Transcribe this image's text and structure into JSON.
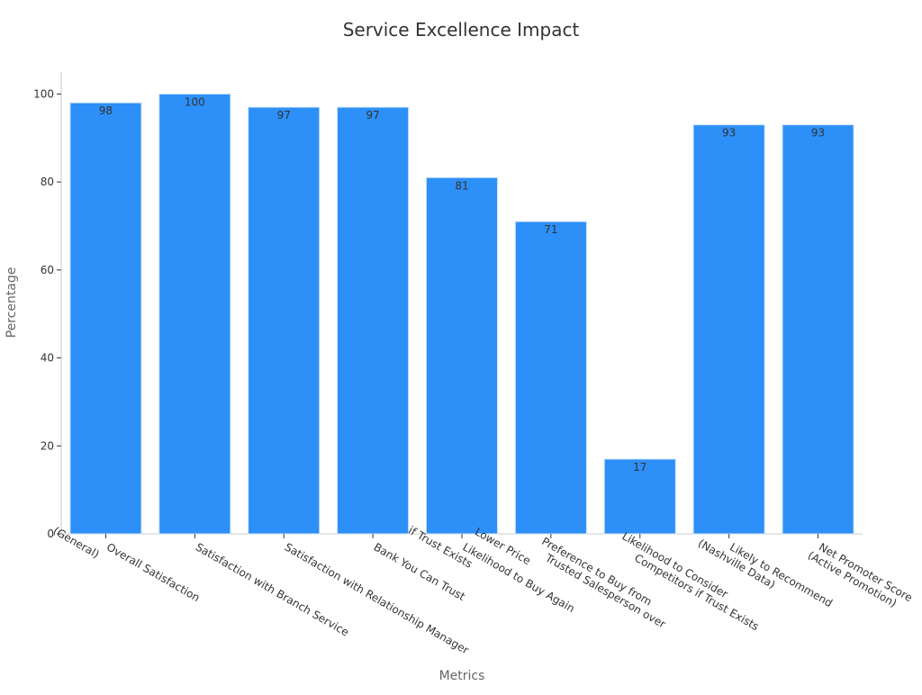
{
  "chart_data": {
    "type": "bar",
    "title": "Service Excellence Impact",
    "xlabel": "Metrics",
    "ylabel": "Percentage",
    "ylim": [
      0,
      105
    ],
    "yticks": [
      0,
      20,
      40,
      60,
      80,
      100
    ],
    "grid": false,
    "categories": [
      [
        "Overall Satisfaction",
        "(General)"
      ],
      [
        "Satisfaction with Branch Service"
      ],
      [
        "Satisfaction with Relationship Manager"
      ],
      [
        "Bank You Can Trust"
      ],
      [
        "Likelihood to Buy Again",
        "if Trust Exists"
      ],
      [
        "Preference to Buy from",
        "Trusted Salesperson over",
        "Lower Price"
      ],
      [
        "Likelihood to Consider",
        "Competitors if Trust Exists"
      ],
      [
        "Likely to Recommend",
        "(Nashville Data)"
      ],
      [
        "Net Promoter Score",
        "(Active Promotion)"
      ]
    ],
    "values": [
      98,
      100,
      97,
      97,
      81,
      71,
      17,
      93,
      93
    ],
    "bar_color": "#2d8ff8",
    "bar_edge_color": "#cfe4fb",
    "value_label_color": "#333333"
  }
}
